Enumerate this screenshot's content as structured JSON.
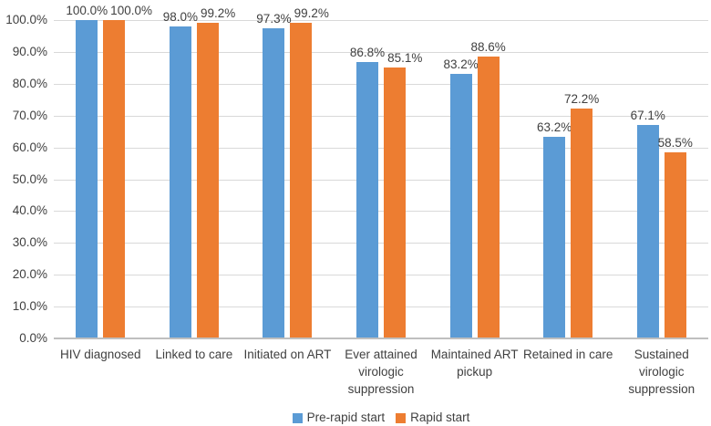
{
  "colors": {
    "series_blue": "#5B9BD5",
    "series_orange": "#ED7D31",
    "gridline": "#D9D9D9",
    "axis_line": "#BFBFBF",
    "text": "#404040",
    "background": "#FFFFFF"
  },
  "chart_data": {
    "type": "bar",
    "title": "",
    "xlabel": "",
    "ylabel": "",
    "grid": true,
    "legend_position": "bottom",
    "categories": [
      "HIV diagnosed",
      "Linked to care",
      "Initiated on ART",
      "Ever attained virologic suppression",
      "Maintained ART pickup",
      "Retained in care",
      "Sustained virologic suppression"
    ],
    "series": [
      {
        "name": "Pre-rapid start",
        "color": "#5B9BD5",
        "values": [
          100.0,
          98.0,
          97.3,
          86.8,
          83.2,
          63.2,
          67.1
        ],
        "labels": [
          "100.0%",
          "98.0%",
          "97.3%",
          "86.8%",
          "83.2%",
          "63.2%",
          "67.1%"
        ]
      },
      {
        "name": "Rapid start",
        "color": "#ED7D31",
        "values": [
          100.0,
          99.2,
          99.2,
          85.1,
          88.6,
          72.2,
          58.5
        ],
        "labels": [
          "100.0%",
          "99.2%",
          "99.2%",
          "85.1%",
          "88.6%",
          "72.2%",
          "58.5%"
        ]
      }
    ],
    "y_axis": {
      "min": 0,
      "max": 100,
      "step": 10,
      "ticks": [
        "100.0%",
        "90.0%",
        "80.0%",
        "70.0%",
        "60.0%",
        "50.0%",
        "40.0%",
        "30.0%",
        "20.0%",
        "10.0%",
        "0.0%"
      ]
    }
  }
}
